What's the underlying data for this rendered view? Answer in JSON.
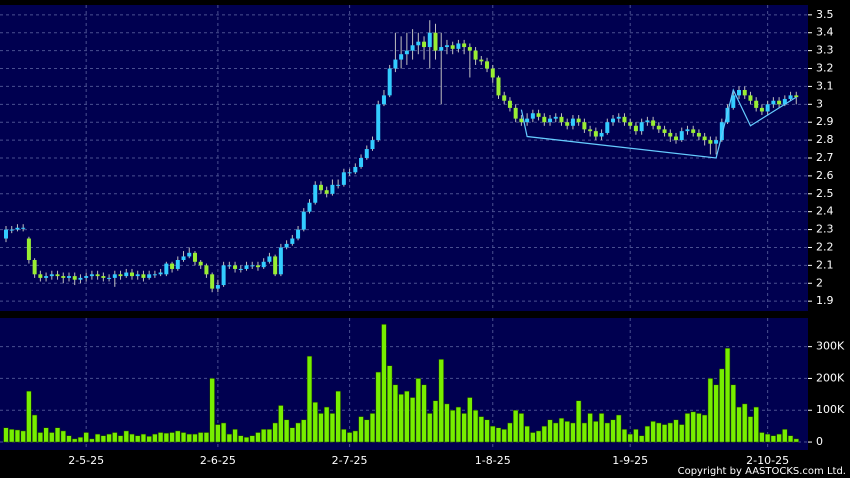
{
  "chart_data": {
    "type": "candlestick",
    "categories": [
      null,
      null,
      null,
      null,
      null,
      null,
      null,
      null,
      null,
      null,
      null,
      null,
      null,
      null,
      "2-5-25",
      null,
      null,
      null,
      null,
      null,
      null,
      null,
      null,
      null,
      null,
      null,
      null,
      null,
      null,
      null,
      null,
      null,
      null,
      null,
      null,
      null,
      null,
      "2-6-25",
      null,
      null,
      null,
      null,
      null,
      null,
      null,
      null,
      null,
      null,
      null,
      null,
      null,
      null,
      null,
      null,
      null,
      null,
      null,
      null,
      null,
      null,
      "2-7-25",
      null,
      null,
      null,
      null,
      null,
      null,
      null,
      null,
      null,
      null,
      null,
      null,
      null,
      null,
      null,
      null,
      null,
      null,
      null,
      null,
      null,
      null,
      null,
      null,
      "1-8-25",
      null,
      null,
      null,
      null,
      null,
      null,
      null,
      null,
      null,
      null,
      null,
      null,
      null,
      null,
      null,
      null,
      null,
      null,
      null,
      null,
      null,
      null,
      null,
      "1-9-25",
      null,
      null,
      null,
      null,
      null,
      null,
      null,
      null,
      null,
      null,
      null,
      null,
      null,
      null,
      null,
      null,
      null,
      null,
      null,
      null,
      null,
      null,
      null,
      "2-10-25",
      null,
      null,
      null,
      null,
      null
    ],
    "open": [
      2.25,
      2.3,
      2.3,
      2.31,
      2.25,
      2.13,
      2.05,
      2.03,
      2.04,
      2.05,
      2.04,
      2.03,
      2.04,
      2.02,
      2.03,
      2.04,
      2.05,
      2.04,
      2.03,
      2.03,
      2.05,
      2.04,
      2.06,
      2.04,
      2.05,
      2.03,
      2.05,
      2.05,
      2.05,
      2.11,
      2.08,
      2.13,
      2.15,
      2.17,
      2.12,
      2.1,
      2.05,
      1.97,
      1.99,
      2.1,
      2.1,
      2.08,
      2.08,
      2.1,
      2.1,
      2.09,
      2.12,
      2.15,
      2.05,
      2.2,
      2.22,
      2.25,
      2.3,
      2.4,
      2.45,
      2.55,
      2.52,
      2.5,
      2.55,
      2.55,
      2.62,
      2.62,
      2.65,
      2.7,
      2.75,
      2.8,
      3.0,
      3.05,
      3.2,
      3.25,
      3.28,
      3.3,
      3.33,
      3.35,
      3.32,
      3.4,
      3.3,
      3.32,
      3.33,
      3.31,
      3.34,
      3.32,
      3.3,
      3.25,
      3.24,
      3.2,
      3.15,
      3.05,
      3.02,
      2.98,
      2.92,
      2.9,
      2.92,
      2.95,
      2.93,
      2.9,
      2.92,
      2.93,
      2.9,
      2.88,
      2.92,
      2.9,
      2.86,
      2.85,
      2.82,
      2.84,
      2.9,
      2.92,
      2.93,
      2.9,
      2.88,
      2.85,
      2.9,
      2.91,
      2.88,
      2.86,
      2.84,
      2.82,
      2.8,
      2.85,
      2.86,
      2.84,
      2.82,
      2.8,
      2.78,
      2.8,
      2.9,
      2.98,
      3.05,
      3.08,
      3.05,
      3.02,
      2.98,
      2.96,
      3.0,
      3.02,
      3.0,
      3.03,
      3.05
    ],
    "high": [
      2.32,
      2.32,
      2.33,
      2.33,
      2.26,
      2.14,
      2.07,
      2.06,
      2.07,
      2.07,
      2.06,
      2.06,
      2.06,
      2.05,
      2.06,
      2.07,
      2.07,
      2.06,
      2.05,
      2.07,
      2.07,
      2.08,
      2.08,
      2.07,
      2.07,
      2.07,
      2.07,
      2.08,
      2.12,
      2.12,
      2.15,
      2.18,
      2.2,
      2.18,
      2.13,
      2.11,
      2.06,
      2.02,
      2.12,
      2.12,
      2.12,
      2.1,
      2.12,
      2.12,
      2.12,
      2.14,
      2.17,
      2.16,
      2.22,
      2.24,
      2.27,
      2.32,
      2.42,
      2.47,
      2.57,
      2.57,
      2.54,
      2.58,
      2.58,
      2.64,
      2.64,
      2.67,
      2.72,
      2.77,
      2.82,
      3.02,
      3.08,
      3.22,
      3.4,
      3.38,
      3.4,
      3.42,
      3.4,
      3.38,
      3.47,
      3.45,
      3.4,
      3.36,
      3.35,
      3.36,
      3.36,
      3.34,
      3.32,
      3.27,
      3.26,
      3.22,
      3.16,
      3.07,
      3.04,
      3.0,
      2.94,
      2.95,
      2.97,
      2.97,
      2.95,
      2.94,
      2.95,
      2.95,
      2.92,
      2.94,
      2.94,
      2.92,
      2.88,
      2.87,
      2.86,
      2.92,
      2.94,
      2.95,
      2.95,
      2.92,
      2.9,
      2.92,
      2.93,
      2.93,
      2.9,
      2.88,
      2.86,
      2.84,
      2.87,
      2.88,
      2.88,
      2.86,
      2.84,
      2.82,
      2.82,
      2.92,
      3.0,
      3.08,
      3.1,
      3.1,
      3.07,
      3.04,
      3.0,
      3.02,
      3.04,
      3.04,
      3.05,
      3.07,
      3.07
    ],
    "low": [
      2.23,
      2.28,
      2.29,
      2.29,
      2.11,
      2.03,
      2.01,
      2.01,
      2.02,
      2.02,
      2.0,
      2.01,
      1.99,
      2.0,
      2.01,
      2.02,
      2.02,
      2.01,
      2.01,
      1.98,
      2.02,
      2.03,
      2.02,
      2.02,
      2.01,
      2.02,
      2.03,
      2.04,
      2.04,
      2.06,
      2.07,
      2.12,
      2.14,
      2.1,
      2.08,
      2.03,
      1.95,
      1.95,
      1.98,
      2.08,
      2.06,
      2.06,
      2.07,
      2.08,
      2.07,
      2.08,
      2.11,
      2.04,
      2.04,
      2.19,
      2.21,
      2.24,
      2.29,
      2.39,
      2.44,
      2.5,
      2.48,
      2.49,
      2.53,
      2.54,
      2.6,
      2.61,
      2.64,
      2.69,
      2.74,
      2.79,
      2.99,
      3.04,
      3.18,
      3.2,
      3.22,
      3.25,
      3.28,
      3.25,
      3.2,
      3.25,
      3.0,
      3.28,
      3.28,
      3.29,
      3.28,
      3.15,
      3.22,
      3.22,
      3.18,
      3.12,
      3.03,
      3.0,
      2.96,
      2.9,
      2.88,
      2.88,
      2.9,
      2.91,
      2.88,
      2.88,
      2.9,
      2.88,
      2.86,
      2.86,
      2.88,
      2.84,
      2.82,
      2.8,
      2.8,
      2.83,
      2.88,
      2.9,
      2.88,
      2.86,
      2.83,
      2.83,
      2.88,
      2.86,
      2.84,
      2.82,
      2.79,
      2.78,
      2.79,
      2.83,
      2.82,
      2.8,
      2.77,
      2.72,
      2.72,
      2.79,
      2.89,
      2.97,
      3.03,
      3.03,
      3.0,
      2.96,
      2.94,
      2.94,
      2.98,
      2.98,
      2.99,
      3.02,
      3.0
    ],
    "close": [
      2.3,
      2.3,
      2.31,
      2.31,
      2.13,
      2.05,
      2.03,
      2.04,
      2.05,
      2.04,
      2.03,
      2.04,
      2.02,
      2.03,
      2.04,
      2.05,
      2.04,
      2.03,
      2.03,
      2.05,
      2.04,
      2.06,
      2.04,
      2.05,
      2.03,
      2.05,
      2.05,
      2.06,
      2.11,
      2.08,
      2.13,
      2.15,
      2.17,
      2.12,
      2.1,
      2.05,
      1.97,
      1.99,
      2.1,
      2.1,
      2.08,
      2.08,
      2.1,
      2.1,
      2.09,
      2.12,
      2.15,
      2.05,
      2.2,
      2.22,
      2.25,
      2.3,
      2.4,
      2.45,
      2.55,
      2.52,
      2.5,
      2.55,
      2.55,
      2.62,
      2.62,
      2.65,
      2.7,
      2.75,
      2.8,
      3.0,
      3.05,
      3.2,
      3.25,
      3.28,
      3.3,
      3.33,
      3.35,
      3.32,
      3.4,
      3.3,
      3.32,
      3.33,
      3.31,
      3.34,
      3.32,
      3.3,
      3.25,
      3.24,
      3.2,
      3.15,
      3.05,
      3.02,
      2.98,
      2.92,
      2.9,
      2.92,
      2.95,
      2.93,
      2.9,
      2.92,
      2.93,
      2.9,
      2.88,
      2.92,
      2.9,
      2.86,
      2.85,
      2.82,
      2.84,
      2.9,
      2.92,
      2.93,
      2.9,
      2.88,
      2.85,
      2.9,
      2.91,
      2.88,
      2.86,
      2.84,
      2.82,
      2.8,
      2.85,
      2.86,
      2.84,
      2.82,
      2.8,
      2.78,
      2.8,
      2.9,
      2.98,
      3.05,
      3.08,
      3.05,
      3.02,
      2.98,
      2.96,
      3.0,
      3.02,
      3.0,
      3.03,
      3.05,
      3.04
    ],
    "ylim": [
      1.845,
      3.555
    ],
    "yticks": [
      1.9,
      2,
      2.1,
      2.2,
      2.3,
      2.4,
      2.5,
      2.6,
      2.7,
      2.8,
      2.9,
      3,
      3.1,
      3.2,
      3.3,
      3.4,
      3.5
    ],
    "up_color": "#33ccff",
    "down_color": "#99ee33",
    "grid": true,
    "trendline": {
      "color": "#66ccff",
      "x": [
        90,
        91,
        124,
        127,
        130,
        138
      ],
      "y": [
        2.97,
        2.82,
        2.7,
        3.08,
        2.88,
        3.04
      ]
    },
    "volume": {
      "color": "#77ee00",
      "values": [
        45000,
        40000,
        38000,
        35000,
        160000,
        85000,
        30000,
        45000,
        30000,
        45000,
        35000,
        20000,
        10000,
        15000,
        30000,
        10000,
        25000,
        20000,
        25000,
        30000,
        20000,
        35000,
        25000,
        20000,
        25000,
        18000,
        25000,
        30000,
        28000,
        30000,
        35000,
        30000,
        25000,
        25000,
        30000,
        30000,
        200000,
        55000,
        60000,
        25000,
        40000,
        20000,
        15000,
        20000,
        30000,
        40000,
        40000,
        60000,
        115000,
        70000,
        45000,
        60000,
        70000,
        270000,
        125000,
        90000,
        110000,
        90000,
        160000,
        40000,
        30000,
        35000,
        80000,
        70000,
        90000,
        220000,
        370000,
        240000,
        180000,
        150000,
        160000,
        140000,
        200000,
        180000,
        90000,
        130000,
        260000,
        120000,
        100000,
        110000,
        90000,
        140000,
        100000,
        80000,
        70000,
        50000,
        45000,
        40000,
        60000,
        100000,
        90000,
        50000,
        30000,
        35000,
        50000,
        70000,
        60000,
        75000,
        65000,
        60000,
        130000,
        60000,
        90000,
        65000,
        90000,
        60000,
        70000,
        85000,
        40000,
        25000,
        40000,
        20000,
        50000,
        65000,
        60000,
        55000,
        60000,
        70000,
        55000,
        90000,
        95000,
        90000,
        85000,
        200000,
        180000,
        230000,
        295000,
        180000,
        110000,
        120000,
        80000,
        110000,
        30000,
        25000,
        20000,
        25000,
        40000,
        20000,
        10000
      ],
      "ylim": [
        -25000,
        390000
      ],
      "yticks": [
        0,
        {
          "value": 100000,
          "label": "100K"
        },
        {
          "value": 200000,
          "label": "200K"
        },
        {
          "value": 300000,
          "label": "300K"
        }
      ]
    },
    "copyright": "Copyright by AASTOCKS.com Ltd."
  }
}
